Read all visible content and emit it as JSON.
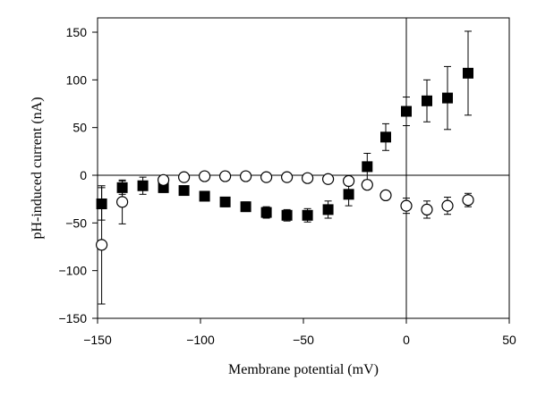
{
  "chart_data": {
    "type": "scatter",
    "title": "",
    "xlabel": "Membrane potential (mV)",
    "ylabel": "pH-induced current (nA)",
    "xlim": [
      -150,
      50
    ],
    "ylim": [
      -150,
      165
    ],
    "xticks": [
      -150,
      -100,
      -50,
      0,
      50
    ],
    "yticks": [
      -150,
      -100,
      -50,
      0,
      50,
      100,
      150
    ],
    "xtick_labels": [
      "−150",
      "−100",
      "−50",
      "0",
      "50"
    ],
    "ytick_labels": [
      "−150",
      "−100",
      "−50",
      "0",
      "50",
      "100",
      "150"
    ],
    "reference_lines": {
      "x": 0,
      "y": 0
    },
    "grid": false,
    "legend": "none",
    "series": [
      {
        "marker": "filled-square",
        "color": "#000000",
        "points": [
          {
            "x": -148,
            "y": -30,
            "err": 17
          },
          {
            "x": -138,
            "y": -13,
            "err": 7
          },
          {
            "x": -128,
            "y": -11,
            "err": 9
          },
          {
            "x": -118,
            "y": -13,
            "err": 5
          },
          {
            "x": -108,
            "y": -16,
            "err": 4
          },
          {
            "x": -98,
            "y": -22,
            "err": 4
          },
          {
            "x": -88,
            "y": -28,
            "err": 5
          },
          {
            "x": -78,
            "y": -33,
            "err": 5
          },
          {
            "x": -68,
            "y": -39,
            "err": 6
          },
          {
            "x": -58,
            "y": -42,
            "err": 6
          },
          {
            "x": -48,
            "y": -42,
            "err": 7
          },
          {
            "x": -38,
            "y": -36,
            "err": 9
          },
          {
            "x": -28,
            "y": -20,
            "err": 12
          },
          {
            "x": -19,
            "y": 9,
            "err": 14
          },
          {
            "x": -10,
            "y": 40,
            "err": 14
          },
          {
            "x": 0,
            "y": 67,
            "err": 15
          },
          {
            "x": 10,
            "y": 78,
            "err": 22
          },
          {
            "x": 20,
            "y": 81,
            "err": 33
          },
          {
            "x": 30,
            "y": 107,
            "err": 44
          }
        ]
      },
      {
        "marker": "open-circle",
        "color": "#000000",
        "points": [
          {
            "x": -148,
            "y": -73,
            "err": 62
          },
          {
            "x": -138,
            "y": -28,
            "err": 23
          },
          {
            "x": -118,
            "y": -5,
            "err": 2
          },
          {
            "x": -108,
            "y": -2,
            "err": 2
          },
          {
            "x": -98,
            "y": -1,
            "err": 2
          },
          {
            "x": -88,
            "y": -1,
            "err": 2
          },
          {
            "x": -78,
            "y": -1,
            "err": 2
          },
          {
            "x": -68,
            "y": -2,
            "err": 2
          },
          {
            "x": -58,
            "y": -2,
            "err": 2
          },
          {
            "x": -48,
            "y": -3,
            "err": 2
          },
          {
            "x": -38,
            "y": -4,
            "err": 2
          },
          {
            "x": -28,
            "y": -6,
            "err": 2
          },
          {
            "x": -19,
            "y": -10,
            "err": 2
          },
          {
            "x": -10,
            "y": -21,
            "err": 4
          },
          {
            "x": 0,
            "y": -32,
            "err": 8
          },
          {
            "x": 10,
            "y": -36,
            "err": 9
          },
          {
            "x": 20,
            "y": -32,
            "err": 9
          },
          {
            "x": 30,
            "y": -26,
            "err": 7
          }
        ]
      }
    ]
  }
}
